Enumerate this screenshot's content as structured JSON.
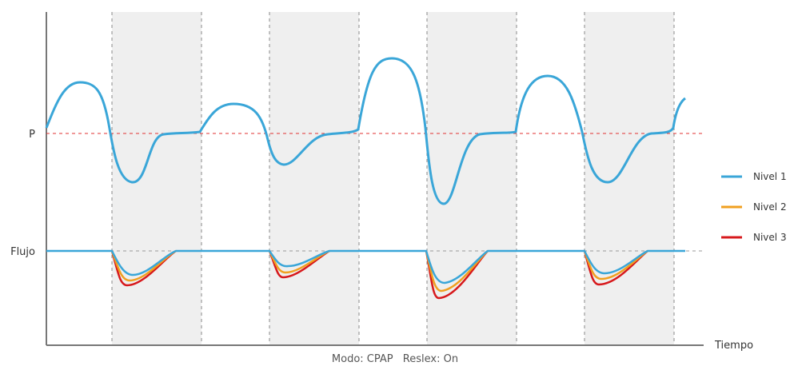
{
  "chart_data": {
    "type": "line",
    "title": "",
    "xlabel": "Tiempo",
    "y_labels": {
      "pressure": "P",
      "flow": "Flujo"
    },
    "axes_show_values": false,
    "shaded_bands": 4,
    "legend": {
      "position": "right",
      "entries": [
        "Nivel 1",
        "Nivel 2",
        "Nivel 3"
      ]
    },
    "series": [
      {
        "name": "Nivel 1",
        "color": "#3aa6d8"
      },
      {
        "name": "Nivel 2",
        "color": "#f0a020"
      },
      {
        "name": "Nivel 3",
        "color": "#d7191c"
      }
    ],
    "reference_line_color": "#e03030"
  },
  "footer": {
    "mode": "Modo: CPAP",
    "reslex": "Reslex: On"
  }
}
